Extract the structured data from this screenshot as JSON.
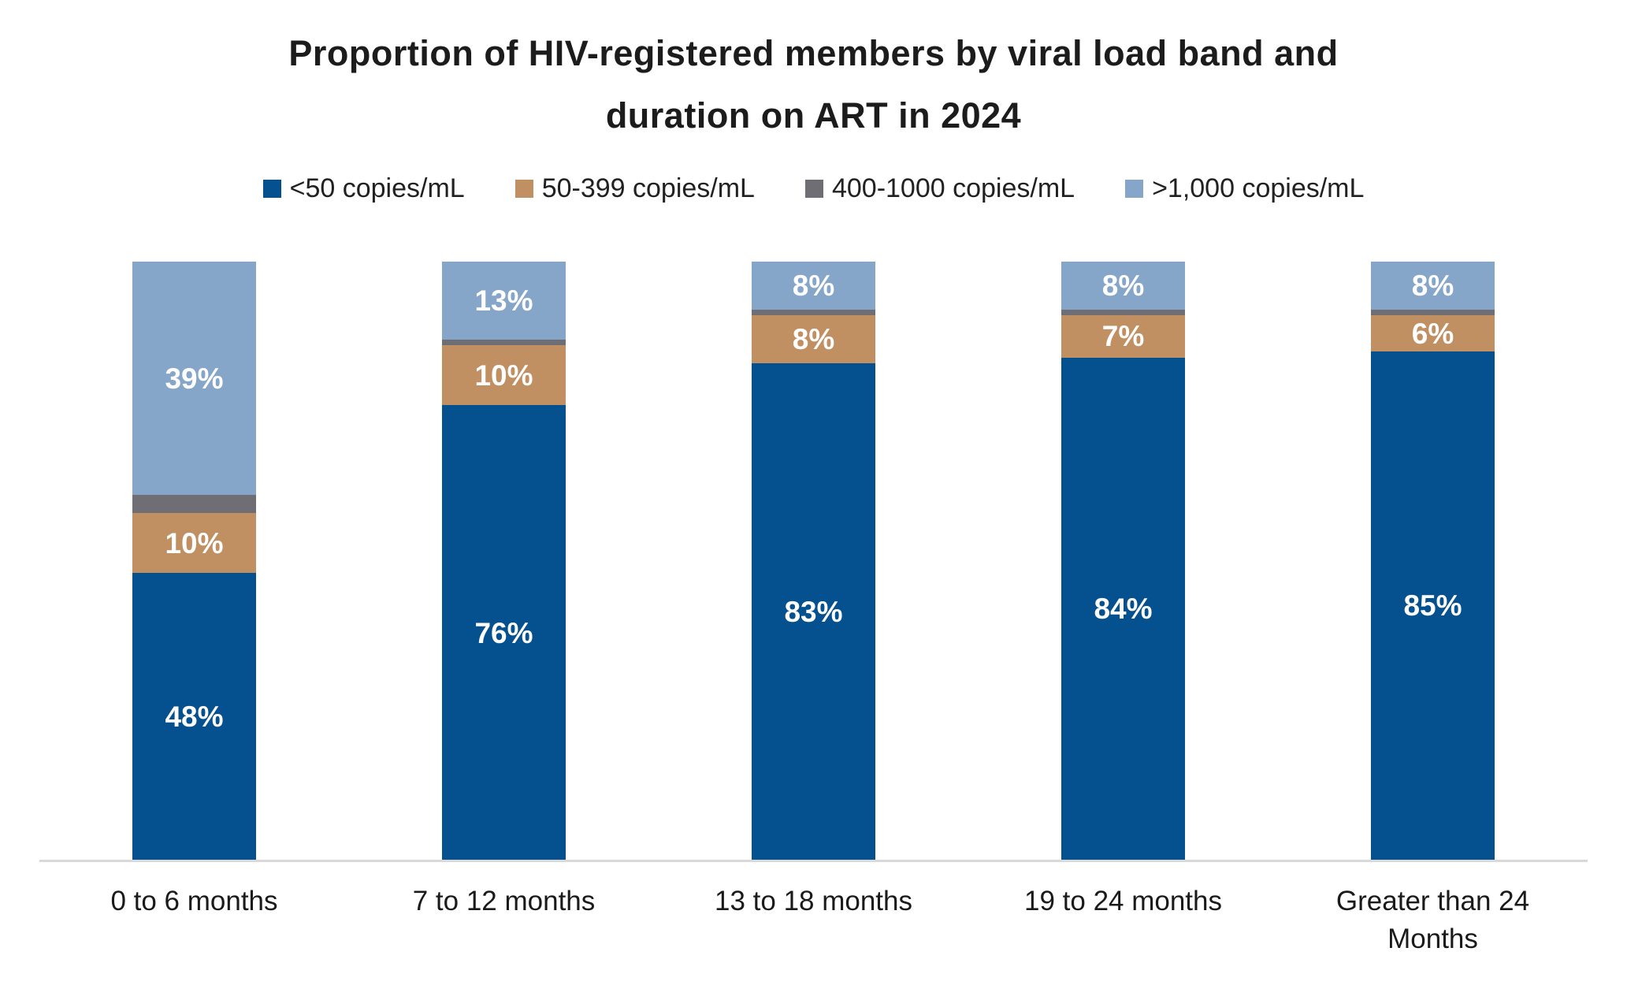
{
  "title": {
    "line1": "Proportion of HIV-registered members by viral load band and",
    "line2": "duration on ART in 2024"
  },
  "colors": {
    "background": "#ffffff",
    "title_text": "#1c1c1c",
    "legend_text": "#212121",
    "axis_label_text": "#1a1a1a",
    "bar_value_text": "#ffffff",
    "axis_line": "#d9d9d9",
    "series_lt50": "#05508e",
    "series_50_399": "#c08f62",
    "series_400_1000": "#6e6e74",
    "series_gt1000": "#85a6c9"
  },
  "chart_data": {
    "type": "bar",
    "subtype": "stacked-100-percent",
    "title": "Proportion of HIV-registered members by viral load band and duration on ART in 2024",
    "xlabel": "",
    "ylabel": "",
    "ylim": [
      0,
      100
    ],
    "grid": false,
    "legend_position": "top",
    "y_axis_visible": false,
    "categories": [
      "0 to 6 months",
      "7 to 12 months",
      "13 to 18 months",
      "19 to 24 months",
      "Greater than 24 Months"
    ],
    "series": [
      {
        "name": "<50 copies/mL",
        "color": "#05508e",
        "values": [
          48,
          76,
          83,
          84,
          85
        ],
        "labels": [
          "48%",
          "76%",
          "83%",
          "84%",
          "85%"
        ]
      },
      {
        "name": "50-399 copies/mL",
        "color": "#c08f62",
        "values": [
          10,
          10,
          8,
          7,
          6
        ],
        "labels": [
          "10%",
          "10%",
          "8%",
          "7%",
          "6%"
        ]
      },
      {
        "name": "400-1000 copies/mL",
        "color": "#6e6e74",
        "values": [
          3,
          1,
          1,
          1,
          1
        ],
        "labels": [
          "",
          "",
          "",
          "",
          ""
        ],
        "note": "segments unlabeled in chart; values estimated from segment heights"
      },
      {
        "name": ">1,000 copies/mL",
        "color": "#85a6c9",
        "values": [
          39,
          13,
          8,
          8,
          8
        ],
        "labels": [
          "39%",
          "13%",
          "8%",
          "8%",
          "8%"
        ]
      }
    ]
  }
}
